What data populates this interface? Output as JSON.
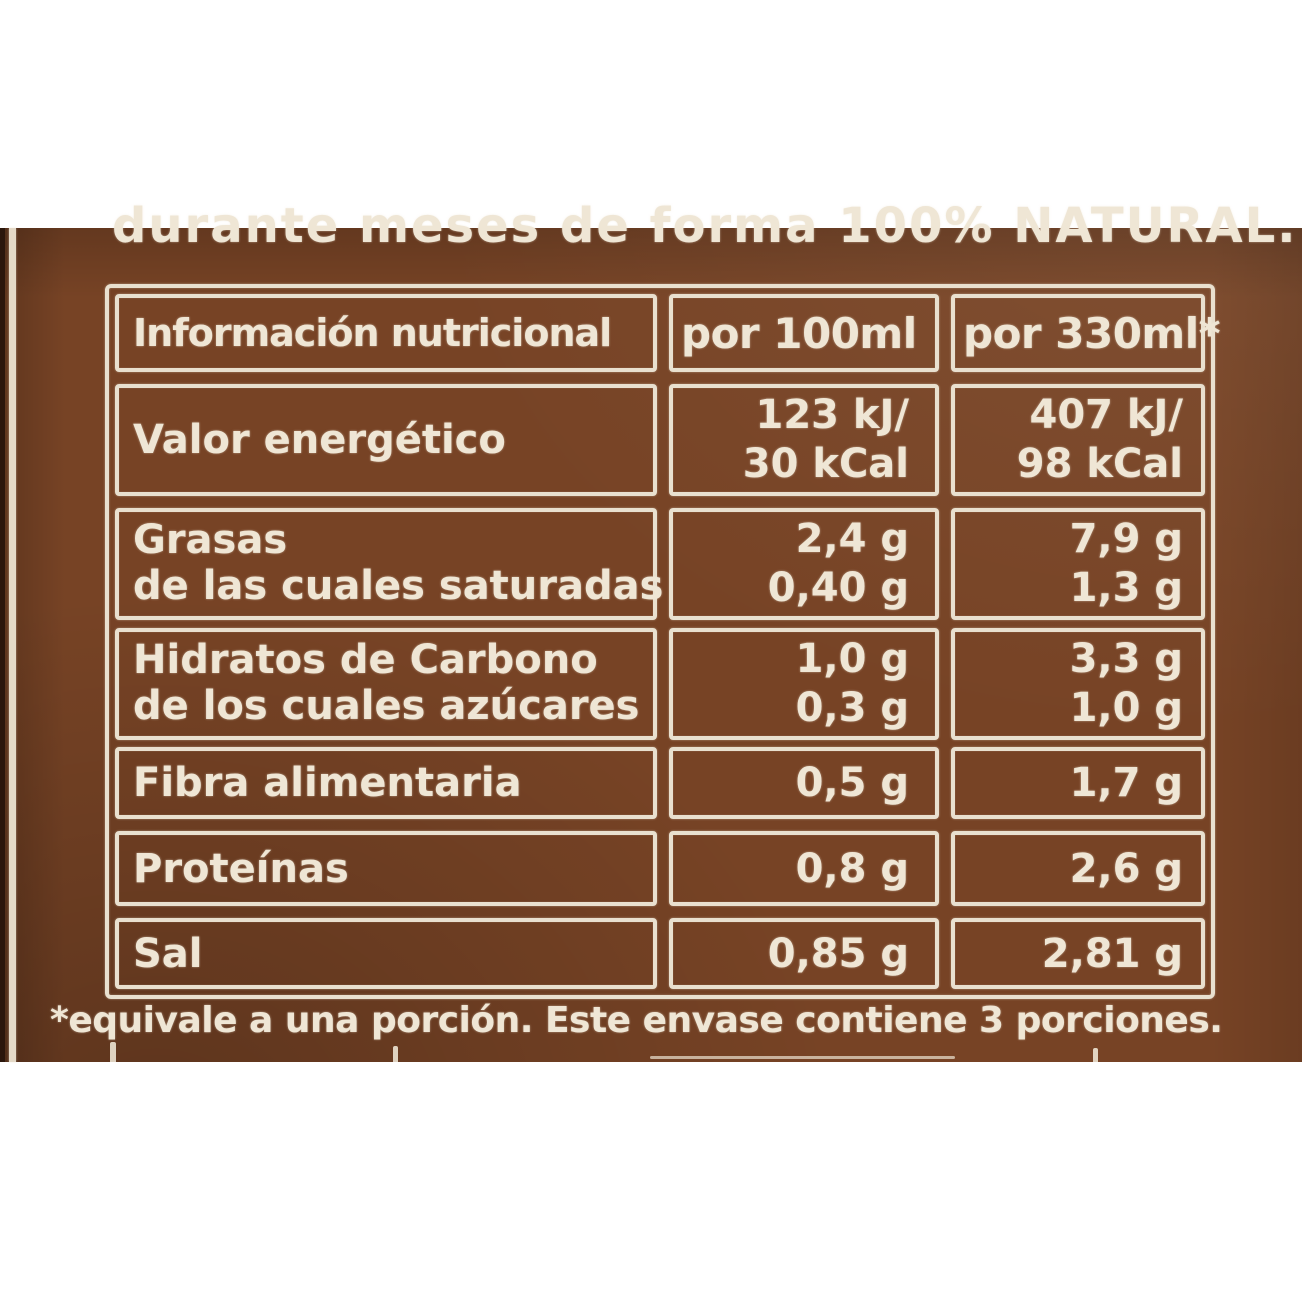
{
  "photo": {
    "top_caption_cut": "durante meses de forma 100% NATURAL.",
    "footnote": "*equivale a una porción. Este envase contiene 3 porciones."
  },
  "table": {
    "header": [
      "Información nutricional",
      "por 100ml",
      "por 330ml*"
    ],
    "rows": [
      {
        "label": [
          "Valor energético"
        ],
        "per_100ml": [
          "123 kJ/",
          "30 kCal"
        ],
        "per_330ml": [
          "407 kJ/",
          "98 kCal"
        ]
      },
      {
        "label": [
          "Grasas",
          "de las cuales saturadas"
        ],
        "per_100ml": [
          "2,4 g",
          "0,40 g"
        ],
        "per_330ml": [
          "7,9 g",
          "1,3 g"
        ]
      },
      {
        "label": [
          "Hidratos de Carbono",
          "de los cuales azúcares"
        ],
        "per_100ml": [
          "1,0 g",
          "0,3 g"
        ],
        "per_330ml": [
          "3,3 g",
          "1,0 g"
        ]
      },
      {
        "label": [
          "Fibra alimentaria"
        ],
        "per_100ml": [
          "0,5 g"
        ],
        "per_330ml": [
          "1,7 g"
        ]
      },
      {
        "label": [
          "Proteínas"
        ],
        "per_100ml": [
          "0,8 g"
        ],
        "per_330ml": [
          "2,6 g"
        ]
      },
      {
        "label": [
          "Sal"
        ],
        "per_100ml": [
          "0,85 g"
        ],
        "per_330ml": [
          "2,81 g"
        ]
      }
    ]
  },
  "colors": {
    "package_brown": "#774325",
    "package_edge_dark": "#2b160c",
    "print_cream": "#efe6d5"
  }
}
